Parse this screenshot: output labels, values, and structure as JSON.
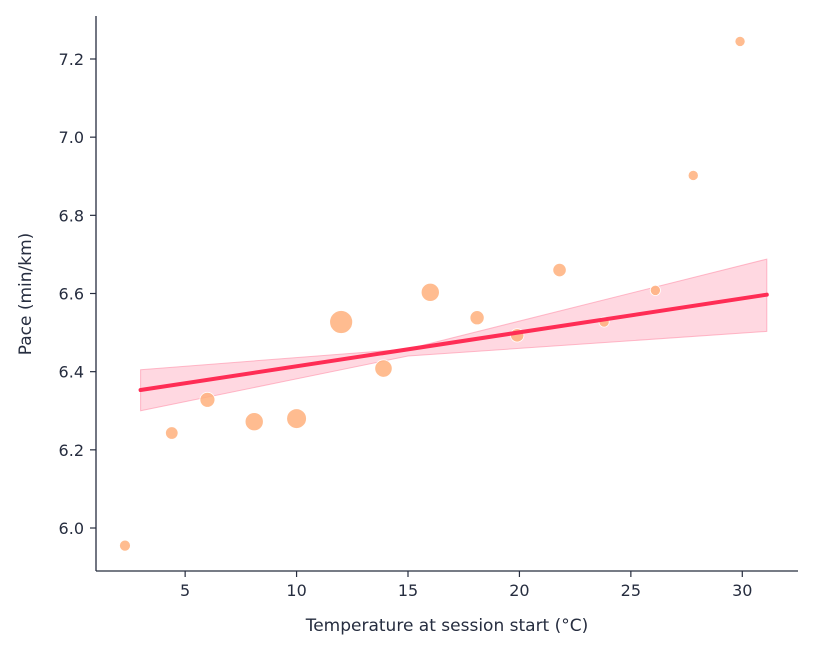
{
  "chart_data": {
    "type": "scatter",
    "title": "",
    "xlabel": "Temperature at session start (°C)",
    "ylabel": "Pace (min/km)",
    "xlim": [
      1,
      32.5
    ],
    "ylim": [
      5.89,
      7.31
    ],
    "xticks": [
      5,
      10,
      15,
      20,
      25,
      30
    ],
    "yticks": [
      6.0,
      6.2,
      6.4,
      6.6,
      6.8,
      7.0,
      7.2
    ],
    "grid": false,
    "legend": "none",
    "points": [
      {
        "x": 2.3,
        "y": 5.955,
        "size": 0.25
      },
      {
        "x": 4.4,
        "y": 6.243,
        "size": 0.35
      },
      {
        "x": 6.0,
        "y": 6.328,
        "size": 0.5
      },
      {
        "x": 8.1,
        "y": 6.272,
        "size": 0.7
      },
      {
        "x": 10.0,
        "y": 6.28,
        "size": 0.8
      },
      {
        "x": 12.0,
        "y": 6.527,
        "size": 1.0
      },
      {
        "x": 13.9,
        "y": 6.408,
        "size": 0.65
      },
      {
        "x": 16.0,
        "y": 6.603,
        "size": 0.7
      },
      {
        "x": 18.1,
        "y": 6.538,
        "size": 0.45
      },
      {
        "x": 19.9,
        "y": 6.493,
        "size": 0.4
      },
      {
        "x": 21.8,
        "y": 6.66,
        "size": 0.4
      },
      {
        "x": 23.8,
        "y": 6.527,
        "size": 0.2
      },
      {
        "x": 26.1,
        "y": 6.608,
        "size": 0.2
      },
      {
        "x": 27.8,
        "y": 6.902,
        "size": 0.2
      },
      {
        "x": 29.9,
        "y": 7.245,
        "size": 0.2
      }
    ],
    "regression": {
      "x_start": 3.0,
      "x_end": 31.1,
      "y_start": 6.353,
      "y_end": 6.597,
      "ci_lower_start": 6.3,
      "ci_upper_start": 6.405,
      "ci_lower_mid": 6.44,
      "ci_upper_mid": 6.458,
      "x_mid": 15.0,
      "ci_lower_end": 6.503,
      "ci_upper_end": 6.688
    },
    "colors": {
      "points": "#ffb07c",
      "line": "#ff2d55",
      "band": "#ff8fa8",
      "axis": "#262d3f"
    }
  }
}
